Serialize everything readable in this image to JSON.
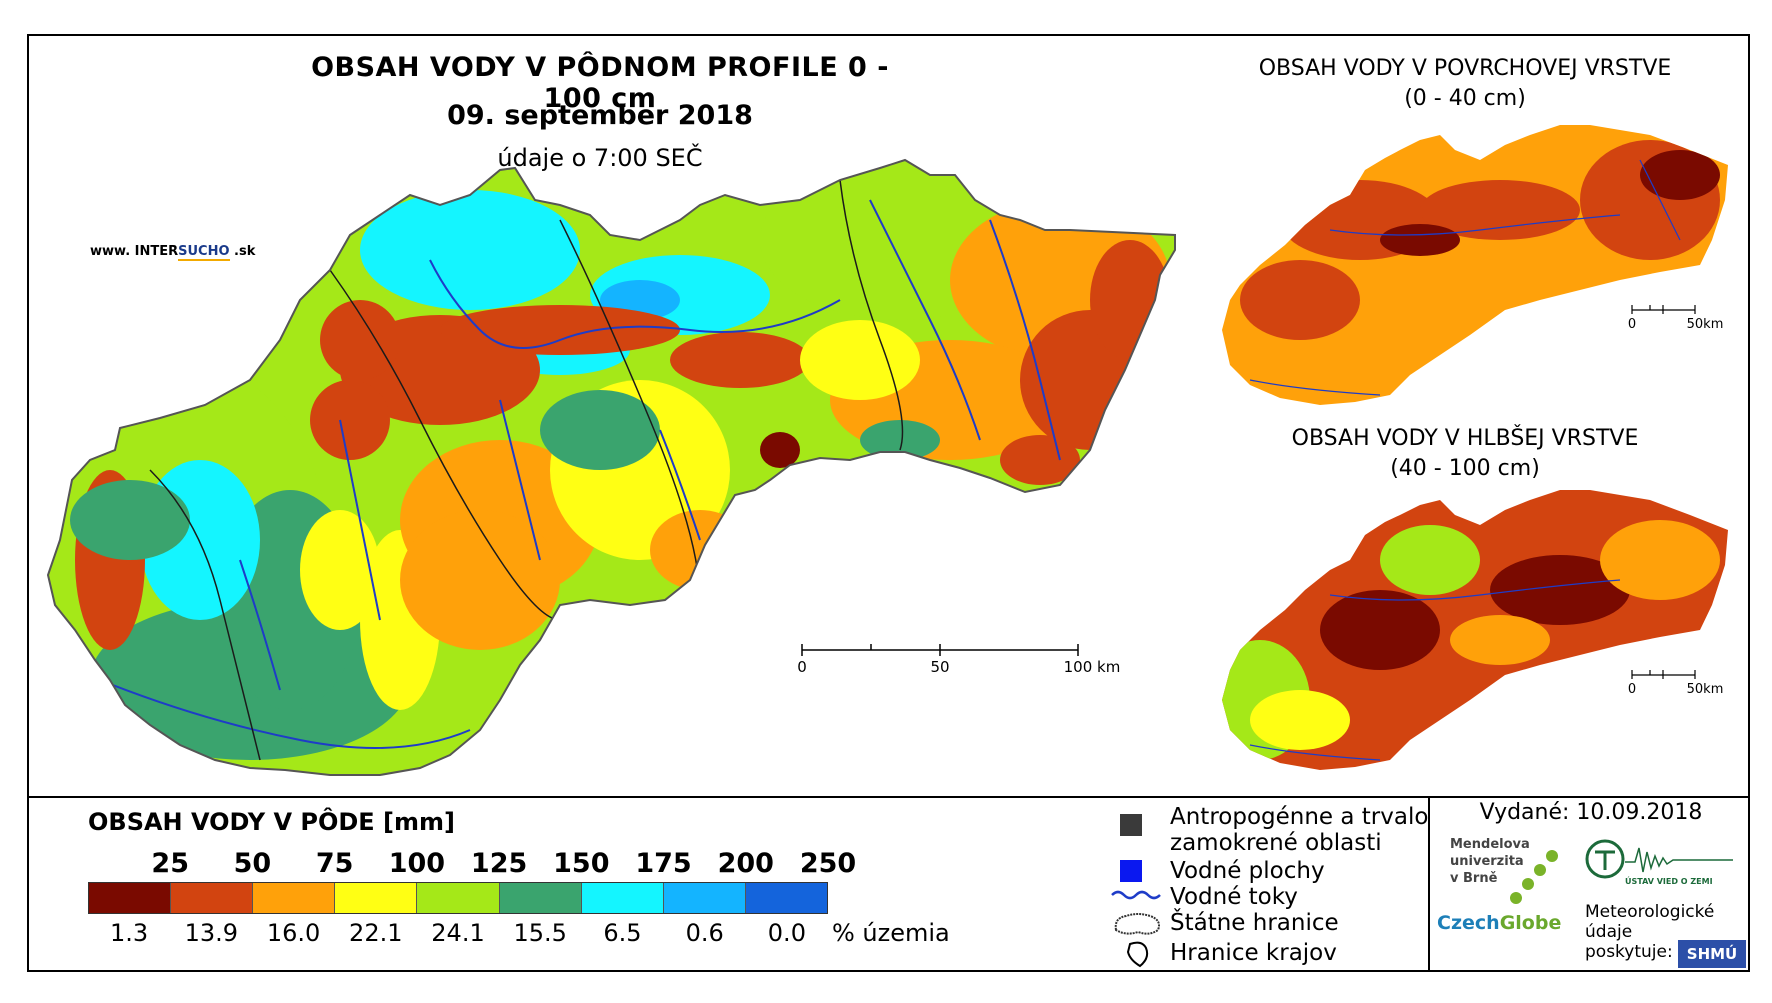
{
  "title": "OBSAH VODY V PÔDNOM PROFILE 0 - 100 cm",
  "date": "09. september 2018",
  "time_note": "údaje o 7:00 SEČ",
  "website": {
    "prefix": "www. INTER",
    "highlight": "SUCHO",
    "suffix": " .sk"
  },
  "main_scale": {
    "labels": [
      "0",
      "50",
      "100 km"
    ]
  },
  "surface_map": {
    "title": "OBSAH VODY V POVRCHOVEJ VRSTVE",
    "range": "(0 - 40 cm)",
    "scale": [
      "0",
      "50km"
    ]
  },
  "deep_map": {
    "title": "OBSAH VODY V HLBŠEJ VRSTVE",
    "range": "(40 - 100 cm)",
    "scale": [
      "0",
      "50km"
    ]
  },
  "legend": {
    "title": "OBSAH VODY V PÔDE [mm]",
    "thresholds": [
      "25",
      "50",
      "75",
      "100",
      "125",
      "150",
      "175",
      "200",
      "250"
    ],
    "colors": [
      "#7a0a00",
      "#d24410",
      "#ffa10a",
      "#ffff14",
      "#a5e818",
      "#3aa46e",
      "#14f5ff",
      "#14b4ff",
      "#1464dc"
    ],
    "percentages": [
      "1.3",
      "13.9",
      "16.0",
      "22.1",
      "24.1",
      "15.5",
      "6.5",
      "0.6",
      "0.0"
    ],
    "percent_unit": "% územia"
  },
  "symbol_legend": {
    "anthropogenic": "Antropogénne a trvalo zamokrené oblasti",
    "anthropogenic_line1": "Antropogénne a trvalo",
    "anthropogenic_line2": "zamokrené oblasti",
    "water_areas": "Vodné plochy",
    "streams": "Vodné toky",
    "borders": "Štátne hranice",
    "regions": "Hranice krajov"
  },
  "issued": "Vydané: 10.09.2018",
  "logos": {
    "mendel": [
      "Mendelova",
      "univerzita",
      "v Brně"
    ],
    "czechglobe_a": "Czech",
    "czechglobe_b": "Globe",
    "ustav": "ÚSTAV VIED O ZEMI",
    "meteo": [
      "Meteorologické",
      "údaje",
      "poskytuje:"
    ],
    "shmu": "SHMÚ"
  }
}
